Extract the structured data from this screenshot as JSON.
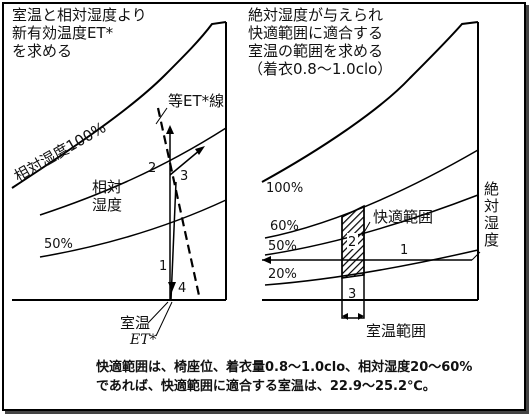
{
  "left": {
    "title": [
      "室温と相対湿度より",
      "新有効温度ET*",
      "を求める"
    ],
    "et_line": "等ET*線",
    "rh100": "相対湿度100%",
    "rh_word": [
      "相対",
      "湿度"
    ],
    "rh50": "50%",
    "steps": [
      "1",
      "2",
      "3",
      "4"
    ],
    "axis_label": [
      "室温",
      "ET*"
    ]
  },
  "right": {
    "title": [
      "絶対湿度が与えられ",
      "快適範囲に適合する",
      "室温の範囲を求める",
      "（着衣0.8～1.0clo）"
    ],
    "rh_labels": [
      "100%",
      "60%",
      "50%",
      "20%"
    ],
    "comfort": "快適範囲",
    "abs_humidity": [
      "絶",
      "対",
      "湿",
      "度"
    ],
    "steps": [
      "1",
      "2",
      "3"
    ],
    "axis_label": "室温範囲"
  },
  "caption": [
    "快適範囲は、椅座位、着衣量0.8～1.0clo、相対湿度20～60%",
    "であれば、快適範囲に適合する室温は、22.9～25.2℃。"
  ]
}
